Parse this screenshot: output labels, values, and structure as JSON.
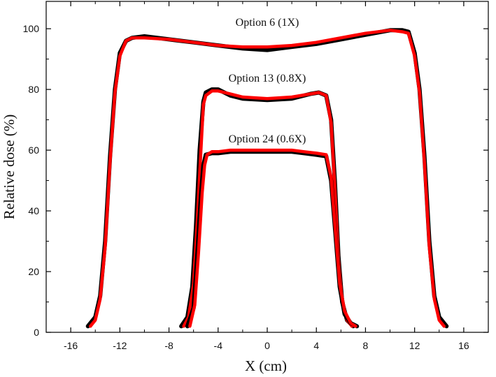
{
  "chart_data": {
    "type": "line",
    "title": "",
    "xlabel": "X (cm)",
    "ylabel": "Relative dose (%)",
    "xlim": [
      -18,
      18
    ],
    "ylim": [
      0,
      109
    ],
    "xticks": [
      -16,
      -12,
      -8,
      -4,
      0,
      4,
      8,
      12,
      16
    ],
    "yticks": [
      0,
      20,
      40,
      60,
      80,
      100
    ],
    "grid": false,
    "legend": "none",
    "annotations": [
      {
        "text": "Option 6 (1X)",
        "x": 0,
        "y": 101
      },
      {
        "text": "Option 13 (0.8X)",
        "x": 0,
        "y": 82.5
      },
      {
        "text": "Option 24 (0.6X)",
        "x": 0,
        "y": 62.5
      }
    ],
    "series": [
      {
        "color": "#000000",
        "x": [
          -14.6,
          -14.0,
          -13.6,
          -13.2,
          -12.8,
          -12.4,
          -12.0,
          -11.5,
          -11.0,
          -10.0,
          -8.0,
          -6.0,
          -4.0,
          -2.0,
          0.0,
          2.0,
          4.0,
          6.0,
          8.0,
          10.0,
          11.0,
          11.5,
          12.0,
          12.4,
          12.8,
          13.2,
          13.6,
          14.0,
          14.6
        ],
        "y": [
          2,
          5,
          12,
          30,
          58,
          80,
          92,
          96,
          97,
          97.5,
          96.5,
          95.5,
          94.5,
          93.5,
          93,
          94,
          95,
          96.5,
          98,
          99.5,
          99.5,
          99,
          92,
          80,
          58,
          30,
          12,
          5,
          2
        ]
      },
      {
        "color": "#ff0000",
        "x": [
          -14.4,
          -14.0,
          -13.6,
          -13.2,
          -12.8,
          -12.4,
          -12.0,
          -11.5,
          -11.0,
          -10.0,
          -8.0,
          -6.0,
          -4.0,
          -2.0,
          0.0,
          2.0,
          4.0,
          6.0,
          8.0,
          10.0,
          11.0,
          11.5,
          12.0,
          12.4,
          12.8,
          13.2,
          13.6,
          14.0,
          14.4
        ],
        "y": [
          2,
          4,
          11,
          28,
          56,
          79,
          91,
          96,
          97,
          97,
          96.5,
          95.5,
          94.5,
          94,
          94,
          94.5,
          95.5,
          97,
          98.5,
          99.5,
          99,
          98.5,
          91,
          79,
          56,
          28,
          11,
          4,
          2
        ]
      },
      {
        "color": "#000000",
        "x": [
          -7.0,
          -6.5,
          -6.1,
          -5.8,
          -5.5,
          -5.2,
          -5.0,
          -4.5,
          -4.0,
          -3.0,
          -2.0,
          0.0,
          2.0,
          3.5,
          4.2,
          4.8,
          5.2,
          5.5,
          5.8,
          6.1,
          6.5,
          7.0
        ],
        "y": [
          2,
          5,
          15,
          35,
          60,
          76,
          79,
          80,
          80,
          78,
          77,
          76.5,
          77,
          78.5,
          79,
          78,
          70,
          50,
          25,
          10,
          4,
          2
        ]
      },
      {
        "color": "#ff0000",
        "x": [
          -6.8,
          -6.4,
          -6.0,
          -5.7,
          -5.4,
          -5.2,
          -5.0,
          -4.5,
          -4.0,
          -3.0,
          -2.0,
          0.0,
          2.0,
          3.5,
          4.2,
          4.8,
          5.2,
          5.5,
          5.8,
          6.1,
          6.5,
          6.9
        ],
        "y": [
          2,
          5,
          16,
          36,
          60,
          75,
          78,
          79.5,
          79.5,
          78.5,
          77.5,
          77,
          77.5,
          78.5,
          79,
          78,
          69,
          48,
          24,
          10,
          4,
          2
        ]
      },
      {
        "color": "#000000",
        "x": [
          -6.5,
          -6.0,
          -5.7,
          -5.4,
          -5.2,
          -5.0,
          -4.5,
          -4.0,
          -3.0,
          -2.0,
          0.0,
          2.0,
          3.0,
          4.0,
          4.8,
          5.2,
          5.5,
          5.9,
          6.3,
          6.8,
          7.3
        ],
        "y": [
          2,
          8,
          25,
          45,
          55,
          58.5,
          59,
          59,
          59.5,
          59.5,
          59.5,
          59.5,
          59,
          58.5,
          58,
          50,
          35,
          15,
          6,
          3,
          2
        ]
      },
      {
        "color": "#ff0000",
        "x": [
          -6.3,
          -5.9,
          -5.6,
          -5.3,
          -5.1,
          -4.9,
          -4.5,
          -4.0,
          -3.0,
          -2.0,
          0.0,
          2.0,
          3.0,
          4.0,
          4.8,
          5.2,
          5.5,
          5.9,
          6.3,
          6.8,
          7.2
        ],
        "y": [
          2,
          9,
          26,
          46,
          55,
          58.5,
          59.5,
          59.5,
          60,
          60,
          60,
          60,
          59.5,
          59,
          58.5,
          51,
          36,
          16,
          7,
          3,
          2
        ]
      }
    ]
  }
}
